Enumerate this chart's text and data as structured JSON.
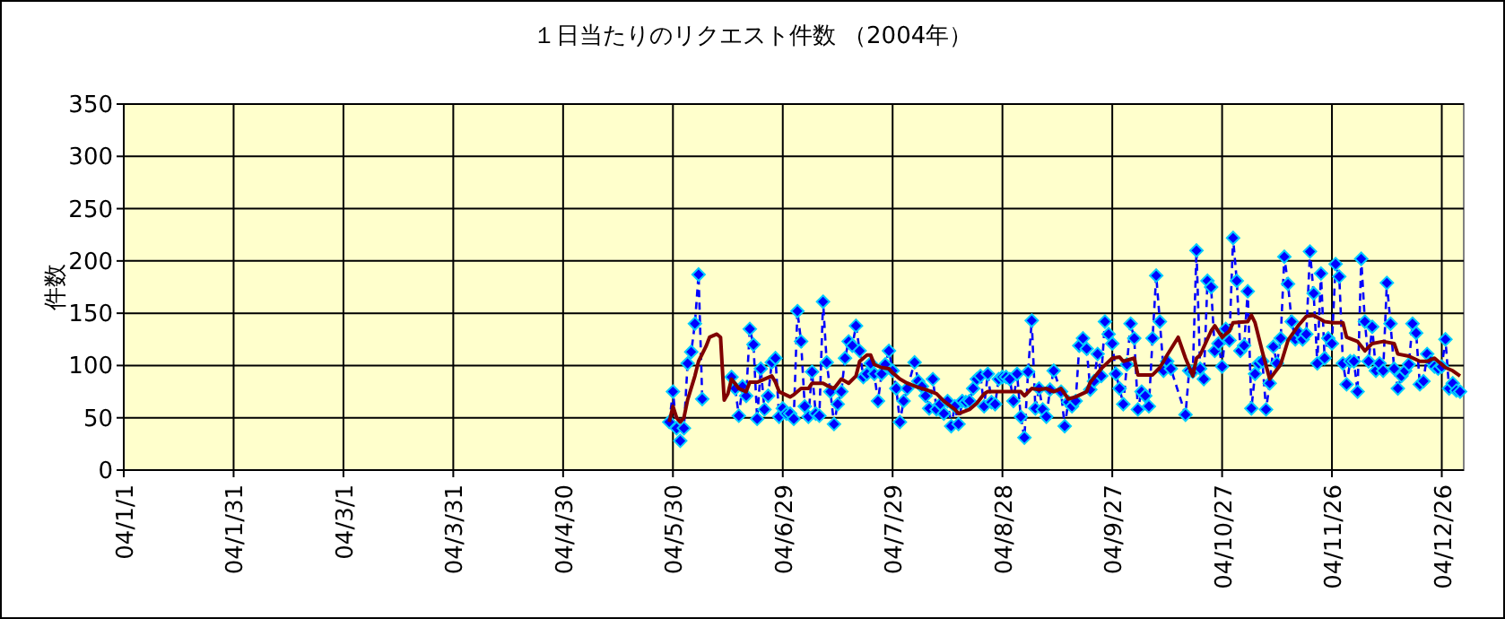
{
  "chart_data": {
    "type": "line",
    "title": "１日当たりのリクエスト件数 （2004年）",
    "ylabel": "件数",
    "xlim": [
      "2004-01-01",
      "2005-01-01"
    ],
    "xticks": [
      {
        "value": "2004-01-01",
        "label": "04/1/1"
      },
      {
        "value": "2004-01-31",
        "label": "04/1/31"
      },
      {
        "value": "2004-03-01",
        "label": "04/3/1"
      },
      {
        "value": "2004-03-31",
        "label": "04/3/31"
      },
      {
        "value": "2004-04-30",
        "label": "04/4/30"
      },
      {
        "value": "2004-05-30",
        "label": "04/5/30"
      },
      {
        "value": "2004-06-29",
        "label": "04/6/29"
      },
      {
        "value": "2004-07-29",
        "label": "04/7/29"
      },
      {
        "value": "2004-08-28",
        "label": "04/8/28"
      },
      {
        "value": "2004-09-27",
        "label": "04/9/27"
      },
      {
        "value": "2004-10-27",
        "label": "04/10/27"
      },
      {
        "value": "2004-11-26",
        "label": "04/11/26"
      },
      {
        "value": "2004-12-26",
        "label": "04/12/26"
      }
    ],
    "ylim": [
      0,
      350
    ],
    "yticks": [
      0,
      50,
      100,
      150,
      200,
      250,
      300,
      350
    ],
    "grid": true,
    "series": [
      {
        "color": "#0000ff",
        "line_style": "dashed",
        "marker": "diamond",
        "x": [
          "2004-05-29",
          "2004-05-30",
          "2004-05-31",
          "2004-06-01",
          "2004-06-02",
          "2004-06-03",
          "2004-06-04",
          "2004-06-05",
          "2004-06-06",
          "2004-06-07",
          "2004-06-10",
          "2004-06-15",
          "2004-06-16",
          "2004-06-17",
          "2004-06-18",
          "2004-06-19",
          "2004-06-20",
          "2004-06-21",
          "2004-06-22",
          "2004-06-23",
          "2004-06-24",
          "2004-06-25",
          "2004-06-26",
          "2004-06-27",
          "2004-06-28",
          "2004-06-29",
          "2004-06-30",
          "2004-07-01",
          "2004-07-02",
          "2004-07-03",
          "2004-07-04",
          "2004-07-05",
          "2004-07-06",
          "2004-07-07",
          "2004-07-08",
          "2004-07-09",
          "2004-07-10",
          "2004-07-11",
          "2004-07-12",
          "2004-07-13",
          "2004-07-14",
          "2004-07-15",
          "2004-07-16",
          "2004-07-17",
          "2004-07-18",
          "2004-07-19",
          "2004-07-20",
          "2004-07-21",
          "2004-07-22",
          "2004-07-23",
          "2004-07-24",
          "2004-07-25",
          "2004-07-26",
          "2004-07-27",
          "2004-07-28",
          "2004-07-29",
          "2004-07-30",
          "2004-07-31",
          "2004-08-01",
          "2004-08-02",
          "2004-08-04",
          "2004-08-05",
          "2004-08-06",
          "2004-08-07",
          "2004-08-08",
          "2004-08-09",
          "2004-08-10",
          "2004-08-11",
          "2004-08-12",
          "2004-08-13",
          "2004-08-14",
          "2004-08-15",
          "2004-08-16",
          "2004-08-17",
          "2004-08-18",
          "2004-08-19",
          "2004-08-20",
          "2004-08-21",
          "2004-08-22",
          "2004-08-23",
          "2004-08-24",
          "2004-08-25",
          "2004-08-26",
          "2004-08-27",
          "2004-08-28",
          "2004-08-29",
          "2004-08-30",
          "2004-08-31",
          "2004-09-01",
          "2004-09-02",
          "2004-09-03",
          "2004-09-04",
          "2004-09-05",
          "2004-09-06",
          "2004-09-07",
          "2004-09-08",
          "2004-09-09",
          "2004-09-10",
          "2004-09-11",
          "2004-09-13",
          "2004-09-14",
          "2004-09-15",
          "2004-09-16",
          "2004-09-17",
          "2004-09-18",
          "2004-09-19",
          "2004-09-20",
          "2004-09-21",
          "2004-09-22",
          "2004-09-23",
          "2004-09-24",
          "2004-09-25",
          "2004-09-26",
          "2004-09-27",
          "2004-09-28",
          "2004-09-29",
          "2004-09-30",
          "2004-10-01",
          "2004-10-02",
          "2004-10-03",
          "2004-10-04",
          "2004-10-05",
          "2004-10-06",
          "2004-10-07",
          "2004-10-08",
          "2004-10-09",
          "2004-10-10",
          "2004-10-11",
          "2004-10-12",
          "2004-10-13",
          "2004-10-17",
          "2004-10-18",
          "2004-10-19",
          "2004-10-20",
          "2004-10-21",
          "2004-10-22",
          "2004-10-23",
          "2004-10-24",
          "2004-10-25",
          "2004-10-26",
          "2004-10-27",
          "2004-10-28",
          "2004-10-29",
          "2004-10-30",
          "2004-10-31",
          "2004-11-01",
          "2004-11-02",
          "2004-11-03",
          "2004-11-04",
          "2004-11-05",
          "2004-11-06",
          "2004-11-07",
          "2004-11-08",
          "2004-11-09",
          "2004-11-10",
          "2004-11-11",
          "2004-11-12",
          "2004-11-13",
          "2004-11-14",
          "2004-11-15",
          "2004-11-16",
          "2004-11-17",
          "2004-11-18",
          "2004-11-19",
          "2004-11-20",
          "2004-11-21",
          "2004-11-22",
          "2004-11-23",
          "2004-11-24",
          "2004-11-25",
          "2004-11-26",
          "2004-11-27",
          "2004-11-28",
          "2004-11-29",
          "2004-11-30",
          "2004-12-01",
          "2004-12-02",
          "2004-12-03",
          "2004-12-04",
          "2004-12-05",
          "2004-12-06",
          "2004-12-07",
          "2004-12-08",
          "2004-12-09",
          "2004-12-10",
          "2004-12-11",
          "2004-12-12",
          "2004-12-13",
          "2004-12-14",
          "2004-12-15",
          "2004-12-16",
          "2004-12-17",
          "2004-12-18",
          "2004-12-19",
          "2004-12-20",
          "2004-12-21",
          "2004-12-22",
          "2004-12-23",
          "2004-12-24",
          "2004-12-25",
          "2004-12-26",
          "2004-12-27",
          "2004-12-28",
          "2004-12-29",
          "2004-12-30",
          "2004-12-31"
        ],
        "values": [
          46,
          75,
          40,
          28,
          40,
          102,
          113,
          140,
          187,
          68,
          null,
          89,
          78,
          52,
          80,
          71,
          135,
          120,
          49,
          97,
          58,
          71,
          103,
          107,
          51,
          59,
          54,
          54,
          49,
          152,
          123,
          61,
          51,
          94,
          54,
          52,
          161,
          103,
          75,
          44,
          63,
          75,
          107,
          123,
          119,
          138,
          114,
          89,
          92,
          102,
          92,
          66,
          92,
          101,
          114,
          95,
          78,
          46,
          66,
          78,
          103,
          85,
          80,
          71,
          59,
          87,
          58,
          63,
          54,
          66,
          42,
          61,
          44,
          66,
          65,
          66,
          78,
          87,
          90,
          61,
          92,
          65,
          63,
          87,
          89,
          89,
          87,
          66,
          92,
          51,
          31,
          94,
          143,
          59,
          78,
          58,
          51,
          77,
          95,
          75,
          42,
          65,
          61,
          66,
          119,
          126,
          116,
          77,
          85,
          111,
          90,
          142,
          130,
          121,
          92,
          78,
          63,
          101,
          140,
          126,
          58,
          75,
          71,
          61,
          126,
          186,
          142,
          95,
          104,
          97,
          53,
          95,
          94,
          210,
          97,
          87,
          181,
          175,
          114,
          121,
          99,
          135,
          124,
          222,
          181,
          114,
          119,
          171,
          59,
          92,
          102,
          104,
          58,
          83,
          118,
          102,
          126,
          204,
          178,
          142,
          125,
          131,
          125,
          130,
          209,
          169,
          102,
          188,
          107,
          126,
          121,
          197,
          185,
          102,
          82,
          104,
          104,
          75,
          202,
          142,
          104,
          137,
          95,
          102,
          95,
          179,
          140,
          97,
          78,
          90,
          95,
          101,
          140,
          131,
          82,
          85,
          111,
          104,
          99,
          97,
          99,
          125,
          78,
          83,
          76,
          75
        ]
      },
      {
        "color": "#800000",
        "line_style": "solid",
        "marker": "none",
        "x": [
          "2004-05-29",
          "2004-05-30",
          "2004-05-31",
          "2004-06-01",
          "2004-06-02",
          "2004-06-03",
          "2004-06-05",
          "2004-06-06",
          "2004-06-08",
          "2004-06-09",
          "2004-06-11",
          "2004-06-12",
          "2004-06-13",
          "2004-06-14",
          "2004-06-15",
          "2004-06-17",
          "2004-06-19",
          "2004-06-20",
          "2004-06-22",
          "2004-06-24",
          "2004-06-26",
          "2004-06-27",
          "2004-06-28",
          "2004-07-01",
          "2004-07-02",
          "2004-07-04",
          "2004-07-06",
          "2004-07-07",
          "2004-07-10",
          "2004-07-11",
          "2004-07-13",
          "2004-07-15",
          "2004-07-17",
          "2004-07-19",
          "2004-07-20",
          "2004-07-22",
          "2004-07-23",
          "2004-07-24",
          "2004-07-26",
          "2004-07-28",
          "2004-07-29",
          "2004-07-31",
          "2004-08-02",
          "2004-08-05",
          "2004-08-07",
          "2004-08-10",
          "2004-08-12",
          "2004-08-15",
          "2004-08-16",
          "2004-08-19",
          "2004-08-21",
          "2004-08-23",
          "2004-08-24",
          "2004-08-28",
          "2004-08-31",
          "2004-09-02",
          "2004-09-03",
          "2004-09-05",
          "2004-09-07",
          "2004-09-09",
          "2004-09-11",
          "2004-09-13",
          "2004-09-15",
          "2004-09-17",
          "2004-09-20",
          "2004-09-21",
          "2004-09-24",
          "2004-09-27",
          "2004-09-29",
          "2004-09-30",
          "2004-10-03",
          "2004-10-04",
          "2004-10-08",
          "2004-10-10",
          "2004-10-12",
          "2004-10-15",
          "2004-10-17",
          "2004-10-19",
          "2004-10-20",
          "2004-10-21",
          "2004-10-24",
          "2004-10-25",
          "2004-10-27",
          "2004-10-29",
          "2004-10-30",
          "2004-11-03",
          "2004-11-04",
          "2004-11-05",
          "2004-11-07",
          "2004-11-09",
          "2004-11-12",
          "2004-11-14",
          "2004-11-17",
          "2004-11-19",
          "2004-11-21",
          "2004-11-24",
          "2004-11-26",
          "2004-11-29",
          "2004-11-30",
          "2004-12-03",
          "2004-12-05",
          "2004-12-07",
          "2004-12-10",
          "2004-12-13",
          "2004-12-14",
          "2004-12-17",
          "2004-12-20",
          "2004-12-22",
          "2004-12-24",
          "2004-12-26",
          "2004-12-27",
          "2004-12-29",
          "2004-12-31"
        ],
        "values": [
          46,
          61,
          50,
          46,
          50,
          67,
          90,
          104,
          118,
          127,
          130,
          127,
          67,
          73,
          87,
          78,
          75,
          84,
          84,
          87,
          90,
          84,
          75,
          70,
          72,
          78,
          78,
          83,
          83,
          81,
          78,
          87,
          83,
          90,
          104,
          110,
          110,
          101,
          98,
          97,
          93,
          87,
          83,
          79,
          77,
          73,
          66,
          58,
          54,
          58,
          64,
          73,
          75,
          75,
          75,
          75,
          71,
          78,
          77,
          78,
          75,
          78,
          68,
          70,
          75,
          84,
          97,
          107,
          108,
          104,
          107,
          91,
          91,
          98,
          110,
          127,
          107,
          90,
          107,
          110,
          133,
          138,
          127,
          133,
          141,
          142,
          148,
          141,
          113,
          87,
          101,
          124,
          139,
          147,
          148,
          142,
          141,
          141,
          127,
          123,
          114,
          121,
          123,
          121,
          111,
          109,
          104,
          104,
          107,
          101,
          98,
          95,
          90
        ]
      }
    ]
  }
}
